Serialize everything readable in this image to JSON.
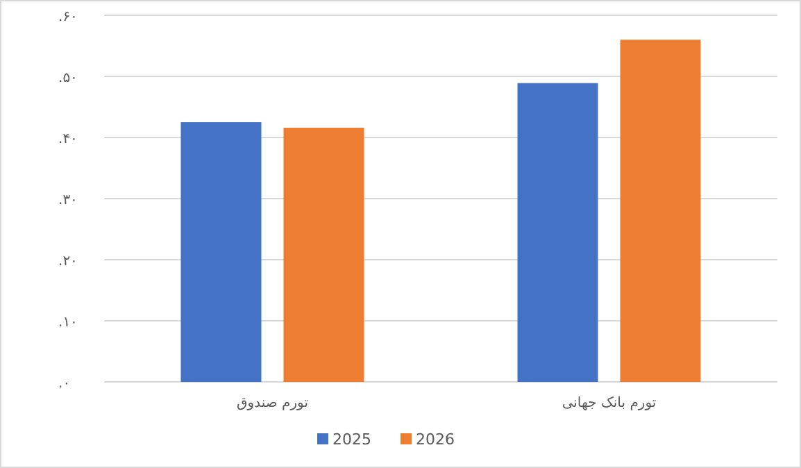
{
  "chart_data": {
    "type": "bar",
    "categories": [
      "تورم صندوق",
      "تورم بانک جهانی"
    ],
    "series": [
      {
        "name": "2025",
        "color": "#4472c4",
        "values": [
          42.5,
          48.9
        ]
      },
      {
        "name": "2026",
        "color": "#ed7d31",
        "values": [
          41.6,
          56.0
        ]
      }
    ],
    "ylim": [
      0,
      60
    ],
    "yticks": [
      {
        "value": 0,
        "label": "۰."
      },
      {
        "value": 10,
        "label": "۱۰."
      },
      {
        "value": 20,
        "label": "۲۰."
      },
      {
        "value": 30,
        "label": "۳۰."
      },
      {
        "value": 40,
        "label": "۴۰."
      },
      {
        "value": 50,
        "label": "۵۰."
      },
      {
        "value": 60,
        "label": "۶۰."
      }
    ],
    "grid": "y",
    "legend": "bottom"
  }
}
